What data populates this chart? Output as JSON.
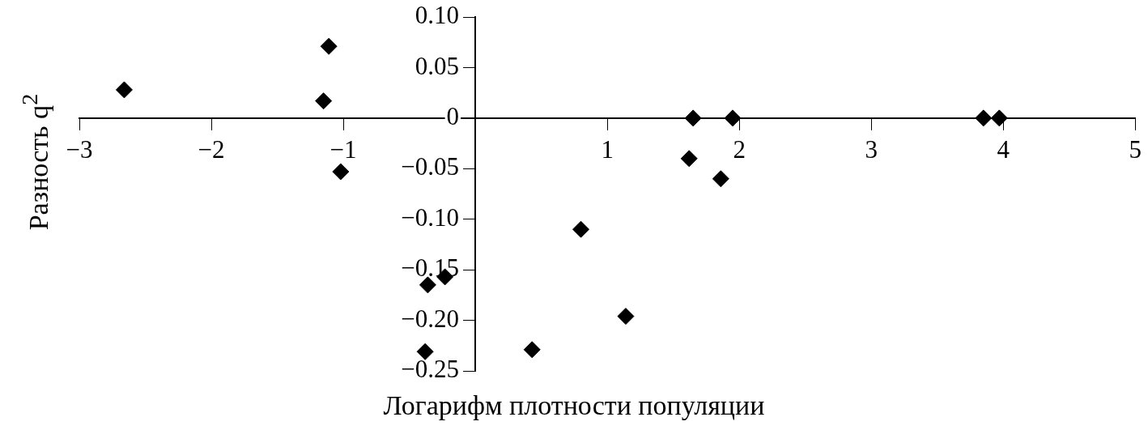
{
  "chart_data": {
    "type": "scatter",
    "xlabel": "Логарифм плотности популяции",
    "ylabel": "Разность q$^{2}$",
    "marker": "diamond",
    "grid": false,
    "xlim": [
      -3,
      5
    ],
    "xticks": [
      {
        "value": -3,
        "label": "−3"
      },
      {
        "value": -2,
        "label": "−2"
      },
      {
        "value": -1,
        "label": "−1"
      },
      1,
      2,
      3,
      4,
      5
    ],
    "ylim": [
      -0.25,
      0.1
    ],
    "yticks": [
      {
        "value": -0.25,
        "label": "−0.25"
      },
      {
        "value": -0.2,
        "label": "−0.20"
      },
      {
        "value": -0.15,
        "label": "−0.15"
      },
      {
        "value": -0.1,
        "label": "−0.10"
      },
      {
        "value": -0.05,
        "label": "−0.05"
      },
      0,
      {
        "value": 0.05,
        "label": "0.05"
      },
      {
        "value": 0.1,
        "label": "0.10"
      }
    ],
    "series": [
      {
        "color": "#000000",
        "x": [
          -2.66,
          -1.11,
          -1.15,
          -1.02,
          -0.36,
          -0.23,
          -0.38,
          0.43,
          0.8,
          1.14,
          1.62,
          1.65,
          1.86,
          1.95,
          3.85,
          3.97
        ],
        "values": [
          0.028,
          0.071,
          0.017,
          -0.053,
          -0.165,
          -0.157,
          -0.231,
          -0.229,
          -0.11,
          -0.196,
          -0.04,
          0,
          -0.06,
          0,
          0,
          0
        ]
      }
    ]
  }
}
